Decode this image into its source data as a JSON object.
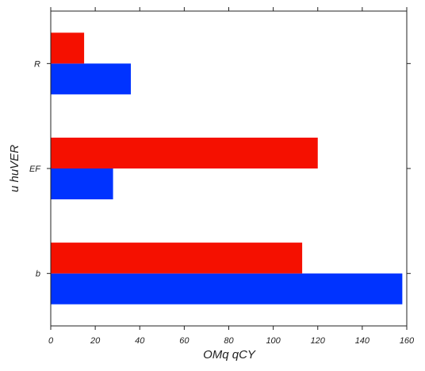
{
  "chart_data": {
    "type": "bar",
    "orientation": "horizontal",
    "categories": [
      "b",
      "EF",
      "R"
    ],
    "series": [
      {
        "color": "#0033ff",
        "values": [
          158,
          28,
          36
        ]
      },
      {
        "color": "#f51000",
        "values": [
          113,
          120,
          15
        ]
      }
    ],
    "xlabel": "OMq qCY",
    "ylabel": "u huVER",
    "xlim": [
      0,
      160
    ],
    "xticks": [
      0,
      20,
      40,
      60,
      80,
      100,
      120,
      140,
      160
    ],
    "grid": false,
    "legend": "none"
  }
}
